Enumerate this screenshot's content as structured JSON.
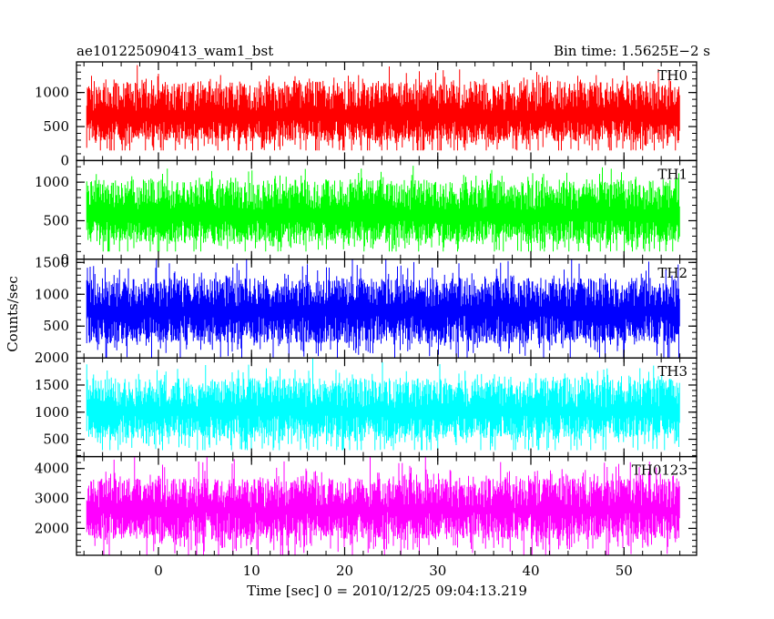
{
  "header": {
    "left_title": "ae101225090413_wam1_bst",
    "right_title": "Bin time: 1.5625E−2 s"
  },
  "chart_data": {
    "type": "line",
    "x": {
      "label": "Time [sec] 0 = 2010/12/25 09:04:13.219",
      "range": [
        -8.8,
        57.8
      ],
      "ticks": [
        0,
        10,
        20,
        30,
        40,
        50
      ],
      "data_range": [
        -7.7,
        56.0
      ],
      "bin": 0.015625
    },
    "ylabel": "Counts/sec",
    "panels": [
      {
        "name": "TH0",
        "color": "#ff0000",
        "ylim": [
          0,
          1450
        ],
        "yticks": [
          0,
          500,
          1000
        ],
        "noise": {
          "mean": 650,
          "min": 150,
          "max": 1450
        }
      },
      {
        "name": "TH1",
        "color": "#00ff00",
        "ylim": [
          0,
          1280
        ],
        "yticks": [
          0,
          500,
          1000
        ],
        "noise": {
          "mean": 560,
          "min": 100,
          "max": 1280
        }
      },
      {
        "name": "TH2",
        "color": "#0000ff",
        "ylim": [
          0,
          1550
        ],
        "yticks": [
          500,
          1000,
          1500
        ],
        "noise": {
          "mean": 720,
          "min": 0,
          "max": 1550
        }
      },
      {
        "name": "TH3",
        "color": "#00ffff",
        "ylim": [
          180,
          2000
        ],
        "yticks": [
          500,
          1000,
          1500,
          2000
        ],
        "noise": {
          "mean": 1000,
          "min": 300,
          "max": 2000
        }
      },
      {
        "name": "TH0123",
        "color": "#ff00ff",
        "ylim": [
          1100,
          4400
        ],
        "yticks": [
          2000,
          3000,
          4000
        ],
        "noise": {
          "mean": 2600,
          "min": 1100,
          "max": 4400
        }
      }
    ]
  }
}
